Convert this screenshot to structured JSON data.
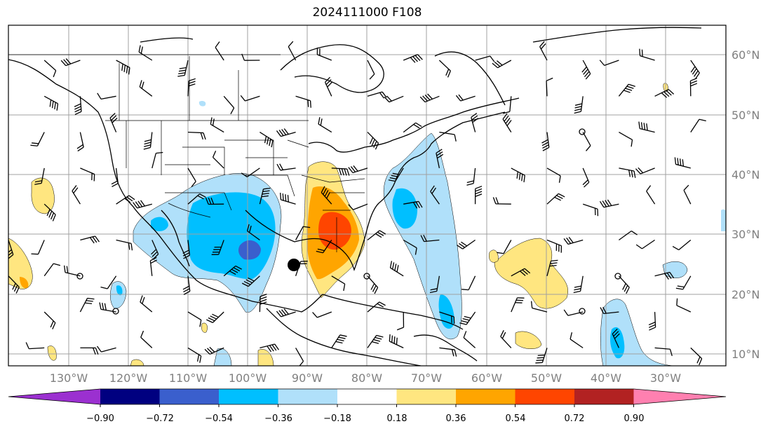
{
  "title": "2024111000 F108",
  "map": {
    "lat_labels": [
      "60°N",
      "50°N",
      "40°N",
      "30°N",
      "20°N",
      "10°N"
    ],
    "lon_labels": [
      "130°W",
      "120°W",
      "110°W",
      "100°W",
      "90°W",
      "80°W",
      "70°W",
      "60°W",
      "50°W",
      "40°W",
      "30°W"
    ],
    "barb_color": "#000000",
    "grid_color": "#a0a0a0"
  },
  "colorbar": {
    "ticks": [
      "−0.90",
      "−0.72",
      "−0.54",
      "−0.36",
      "−0.18",
      "0.18",
      "0.36",
      "0.54",
      "0.72",
      "0.90"
    ],
    "colors": [
      "#9b30d0",
      "#000080",
      "#3a5fcd",
      "#00bfff",
      "#b0e0fa",
      "#ffffff",
      "#ffe680",
      "#ffa500",
      "#ff4500",
      "#b22222",
      "#ff80b0"
    ]
  },
  "colors": {
    "neg_light": "#b0e0fa",
    "neg_mid": "#00bfff",
    "neg_dark": "#3a5fcd",
    "pos_light": "#ffe680",
    "pos_mid": "#ffa500",
    "pos_dark": "#ff4500"
  }
}
